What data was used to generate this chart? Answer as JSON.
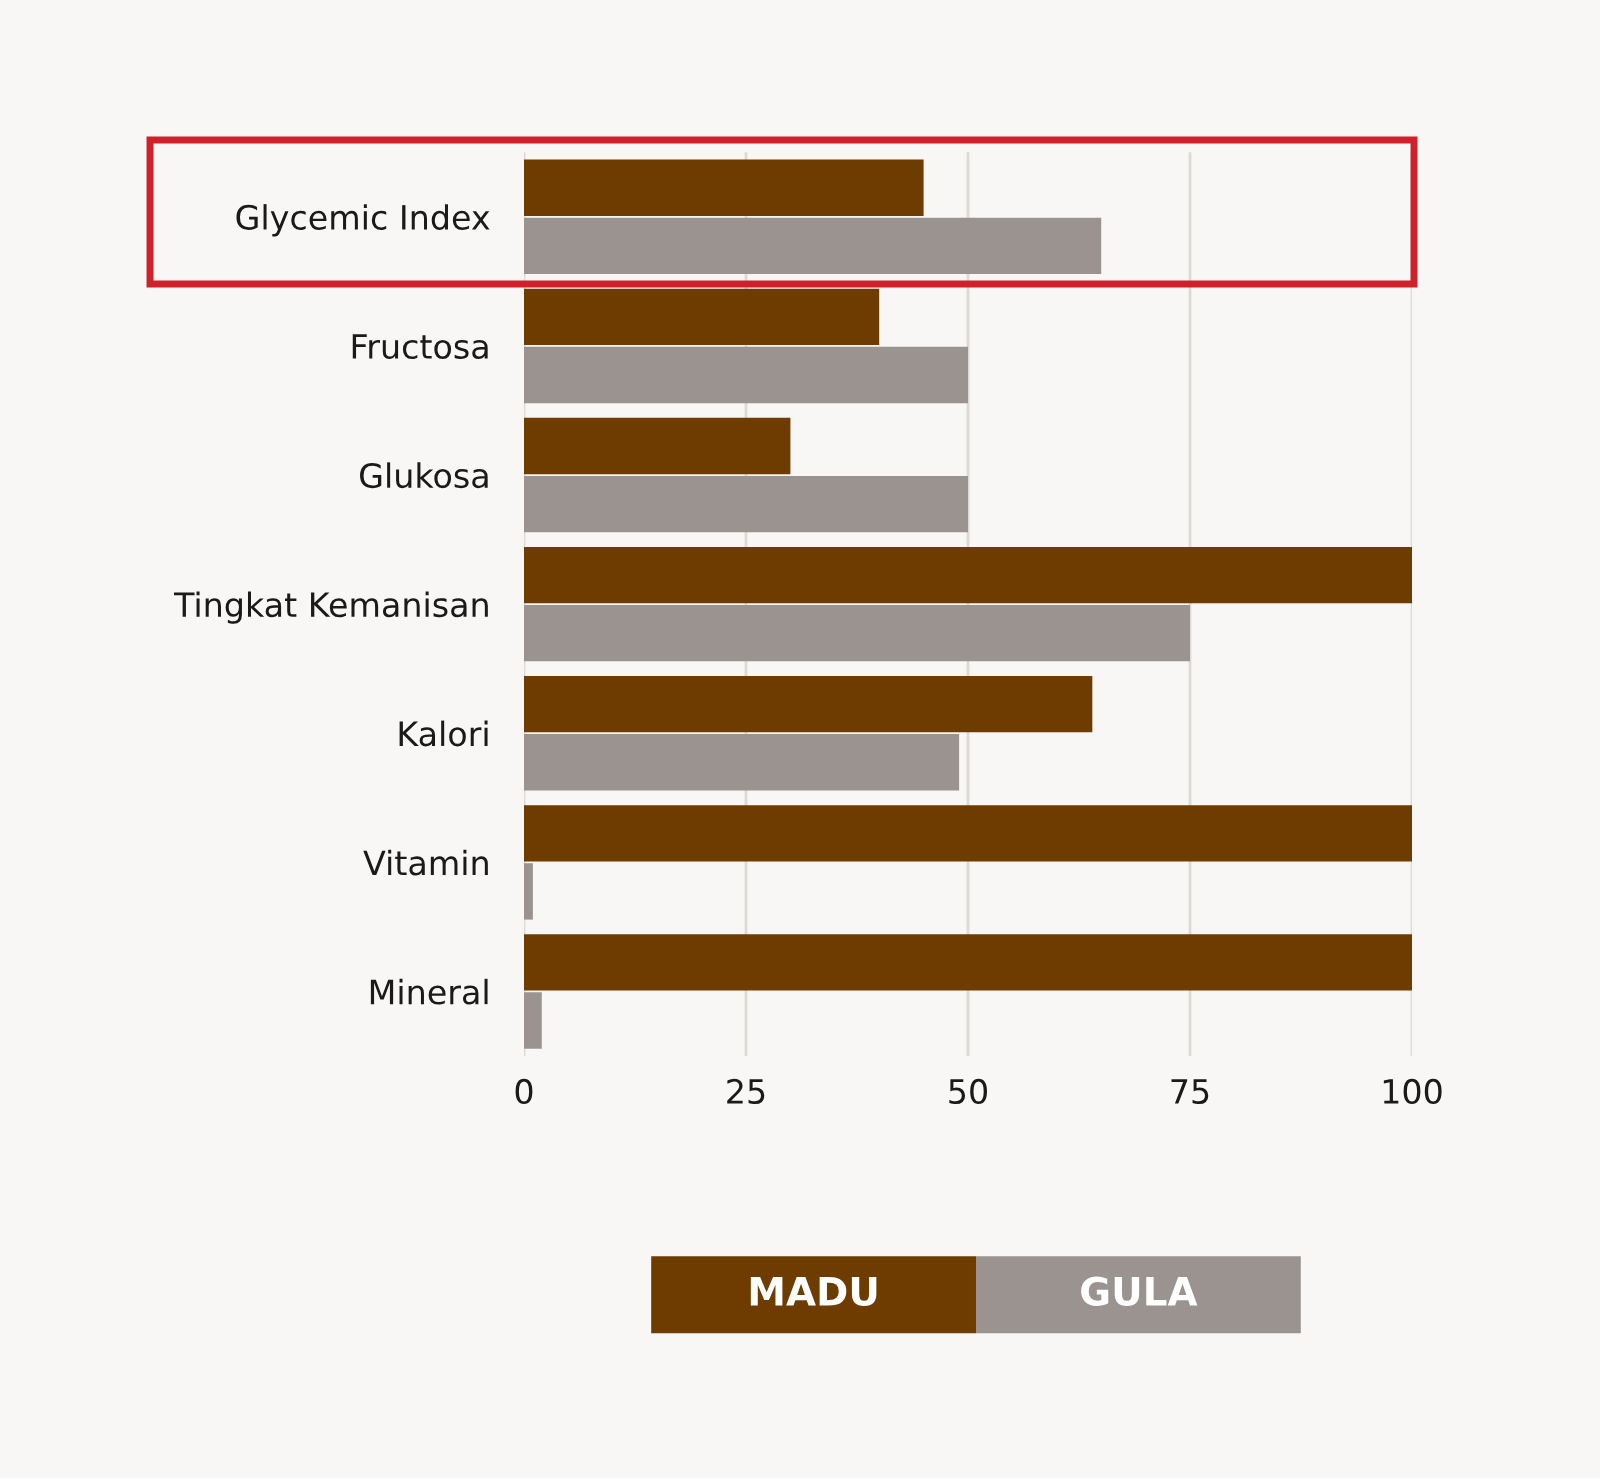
{
  "chart_data": {
    "type": "bar",
    "orientation": "horizontal",
    "categories": [
      "Glycemic Index",
      "Fructosa",
      "Glukosa",
      "Tingkat Kemanisan",
      "Kalori",
      "Vitamin",
      "Mineral"
    ],
    "series": [
      {
        "name": "MADU",
        "color": "#6f3c00",
        "values": [
          45,
          40,
          30,
          100,
          64,
          100,
          100
        ]
      },
      {
        "name": "GULA",
        "color": "#9b9390",
        "values": [
          65,
          50,
          50,
          75,
          49,
          1,
          2
        ]
      }
    ],
    "xlim": [
      0,
      100
    ],
    "xticks": [
      0,
      25,
      50,
      75,
      100
    ],
    "grid": "x",
    "legend": "bottom"
  }
}
